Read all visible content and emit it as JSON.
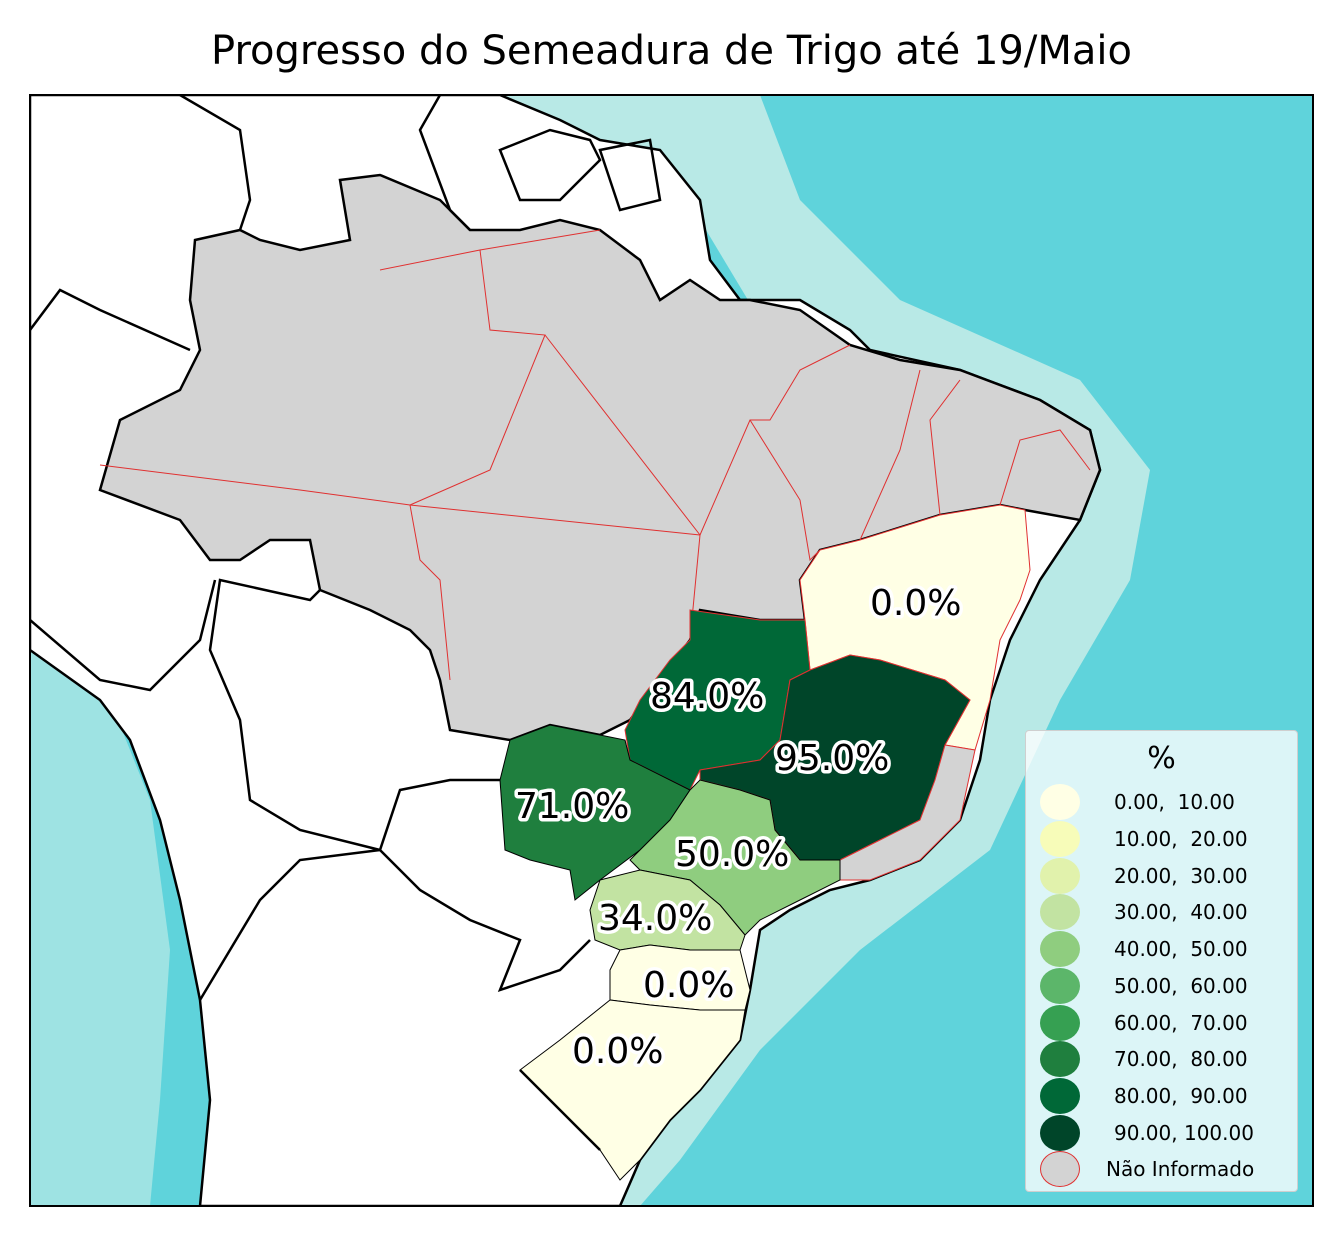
{
  "title": "Progresso do Semeadura de Trigo até 19/Maio",
  "colors": {
    "ocean": "#5fd3db",
    "ocean_shelf": "#b8e9e6",
    "land_other": "#ffffff",
    "not_informed": "#d3d3d3",
    "state_border": "#e03030",
    "country_border": "#000000"
  },
  "states": [
    {
      "name": "BA",
      "value_label": "0.0%",
      "color": "#ffffe5"
    },
    {
      "name": "GO",
      "value_label": "84.0%",
      "color": "#006837"
    },
    {
      "name": "MG",
      "value_label": "95.0%",
      "color": "#004529"
    },
    {
      "name": "MS",
      "value_label": "71.0%",
      "color": "#1f7f3e"
    },
    {
      "name": "SP",
      "value_label": "50.0%",
      "color": "#8fcd7f"
    },
    {
      "name": "PR",
      "value_label": "34.0%",
      "color": "#c2e3a2"
    },
    {
      "name": "SC",
      "value_label": "0.0%",
      "color": "#ffffe5"
    },
    {
      "name": "RS",
      "value_label": "0.0%",
      "color": "#ffffe5"
    }
  ],
  "legend": {
    "title": "%",
    "items": [
      {
        "label": "0.00,  10.00",
        "color": "#ffffe5"
      },
      {
        "label": "10.00,  20.00",
        "color": "#f7fcb9"
      },
      {
        "label": "20.00,  30.00",
        "color": "#e1f2ac"
      },
      {
        "label": "30.00,  40.00",
        "color": "#c2e3a2"
      },
      {
        "label": "40.00,  50.00",
        "color": "#8fcd7f"
      },
      {
        "label": "50.00,  60.00",
        "color": "#5cb66a"
      },
      {
        "label": "60.00,  70.00",
        "color": "#36a052"
      },
      {
        "label": "70.00,  80.00",
        "color": "#1f7f3e"
      },
      {
        "label": "80.00,  90.00",
        "color": "#006837"
      },
      {
        "label": "90.00, 100.00",
        "color": "#004529"
      },
      {
        "label": "Não Informado",
        "color": "#d3d3d3"
      }
    ]
  }
}
